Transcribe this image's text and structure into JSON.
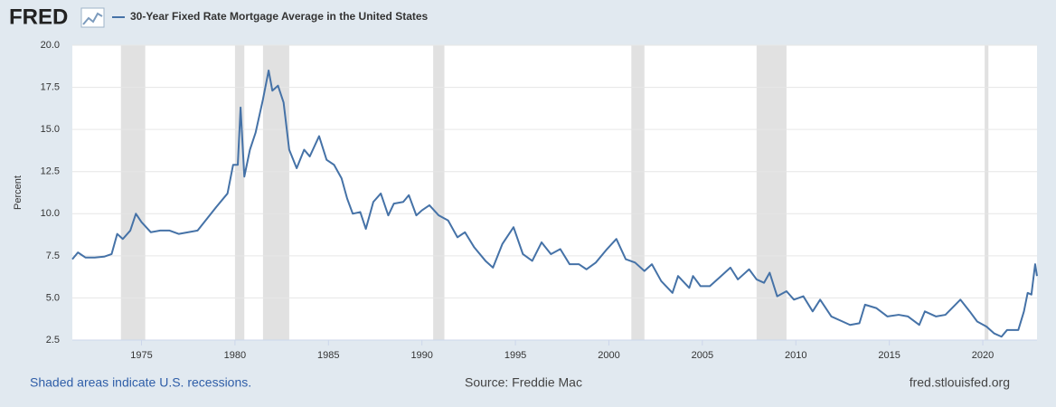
{
  "chart_data": {
    "type": "line",
    "logo": "FRED",
    "y_label": "Percent",
    "footer_left": "Shaded areas indicate U.S. recessions.",
    "source": "Source: Freddie Mac",
    "footer_right": "fred.stlouisfed.org",
    "xlim": [
      1971.3,
      2022.9
    ],
    "xticks": [
      1975,
      1980,
      1985,
      1990,
      1995,
      2000,
      2005,
      2010,
      2015,
      2020
    ],
    "ylim": [
      2.5,
      20
    ],
    "yticks": [
      2.5,
      {
        "value": 5,
        "label": "5.0"
      },
      7.5,
      {
        "value": 10,
        "label": "10.0"
      },
      12.5,
      {
        "value": 15,
        "label": "15.0"
      },
      17.5,
      {
        "value": 20,
        "label": "20.0"
      }
    ],
    "grid": true,
    "recessions": [
      [
        1973.9,
        1975.2
      ],
      [
        1980.0,
        1980.5
      ],
      [
        1981.5,
        1982.9
      ],
      [
        1990.6,
        1991.2
      ],
      [
        2001.2,
        2001.9
      ],
      [
        2007.9,
        2009.5
      ],
      [
        2020.1,
        2020.3
      ]
    ],
    "x": [
      1971.3,
      1971.6,
      1972.0,
      1972.5,
      1973.0,
      1973.4,
      1973.7,
      1974.0,
      1974.4,
      1974.7,
      1975.0,
      1975.5,
      1976.0,
      1976.5,
      1977.0,
      1977.5,
      1978.0,
      1978.5,
      1979.0,
      1979.6,
      1979.9,
      1980.15,
      1980.3,
      1980.5,
      1980.8,
      1981.1,
      1981.5,
      1981.8,
      1982.0,
      1982.3,
      1982.6,
      1982.9,
      1983.3,
      1983.7,
      1984.0,
      1984.5,
      1984.9,
      1985.3,
      1985.7,
      1986.0,
      1986.3,
      1986.7,
      1987.0,
      1987.4,
      1987.8,
      1988.2,
      1988.5,
      1989.0,
      1989.3,
      1989.7,
      1990.0,
      1990.4,
      1990.9,
      1991.4,
      1991.9,
      1992.3,
      1992.8,
      1993.4,
      1993.8,
      1994.3,
      1994.9,
      1995.4,
      1995.9,
      1996.4,
      1996.9,
      1997.4,
      1997.9,
      1998.4,
      1998.8,
      1999.3,
      1999.9,
      2000.4,
      2000.9,
      2001.4,
      2001.9,
      2002.3,
      2002.8,
      2003.4,
      2003.7,
      2004.3,
      2004.5,
      2004.9,
      2005.4,
      2005.9,
      2006.5,
      2006.9,
      2007.5,
      2007.9,
      2008.3,
      2008.6,
      2009.0,
      2009.5,
      2009.9,
      2010.4,
      2010.9,
      2011.3,
      2011.9,
      2012.5,
      2012.9,
      2013.4,
      2013.7,
      2014.3,
      2014.9,
      2015.5,
      2016.0,
      2016.6,
      2016.9,
      2017.5,
      2018.0,
      2018.8,
      2019.3,
      2019.7,
      2020.2,
      2020.6,
      2021.0,
      2021.3,
      2021.9,
      2022.2,
      2022.4,
      2022.6,
      2022.8,
      2022.9
    ],
    "series": [
      {
        "name": "30-Year Fixed Rate Mortgage Average in the United States",
        "color": "#4572a7",
        "values": [
          7.3,
          7.7,
          7.4,
          7.4,
          7.45,
          7.6,
          8.8,
          8.5,
          9.0,
          10.0,
          9.5,
          8.9,
          9.0,
          9.0,
          8.8,
          8.9,
          9.0,
          9.7,
          10.4,
          11.2,
          12.9,
          12.9,
          16.3,
          12.2,
          13.8,
          14.8,
          16.8,
          18.5,
          17.3,
          17.6,
          16.6,
          13.8,
          12.7,
          13.8,
          13.4,
          14.6,
          13.2,
          12.9,
          12.1,
          10.9,
          10.0,
          10.1,
          9.1,
          10.7,
          11.2,
          9.9,
          10.6,
          10.7,
          11.1,
          9.9,
          10.2,
          10.5,
          9.9,
          9.6,
          8.6,
          8.9,
          8.0,
          7.2,
          6.8,
          8.2,
          9.2,
          7.6,
          7.2,
          8.3,
          7.6,
          7.9,
          7.0,
          7.0,
          6.7,
          7.1,
          7.9,
          8.5,
          7.3,
          7.1,
          6.6,
          7.0,
          6.0,
          5.3,
          6.3,
          5.6,
          6.3,
          5.7,
          5.7,
          6.2,
          6.8,
          6.1,
          6.7,
          6.1,
          5.9,
          6.5,
          5.1,
          5.4,
          4.9,
          5.1,
          4.2,
          4.9,
          3.9,
          3.6,
          3.4,
          3.5,
          4.6,
          4.4,
          3.9,
          4.0,
          3.9,
          3.4,
          4.2,
          3.9,
          4.0,
          4.9,
          4.2,
          3.6,
          3.3,
          2.9,
          2.7,
          3.1,
          3.1,
          4.2,
          5.3,
          5.2,
          7.0,
          6.3
        ]
      }
    ]
  }
}
